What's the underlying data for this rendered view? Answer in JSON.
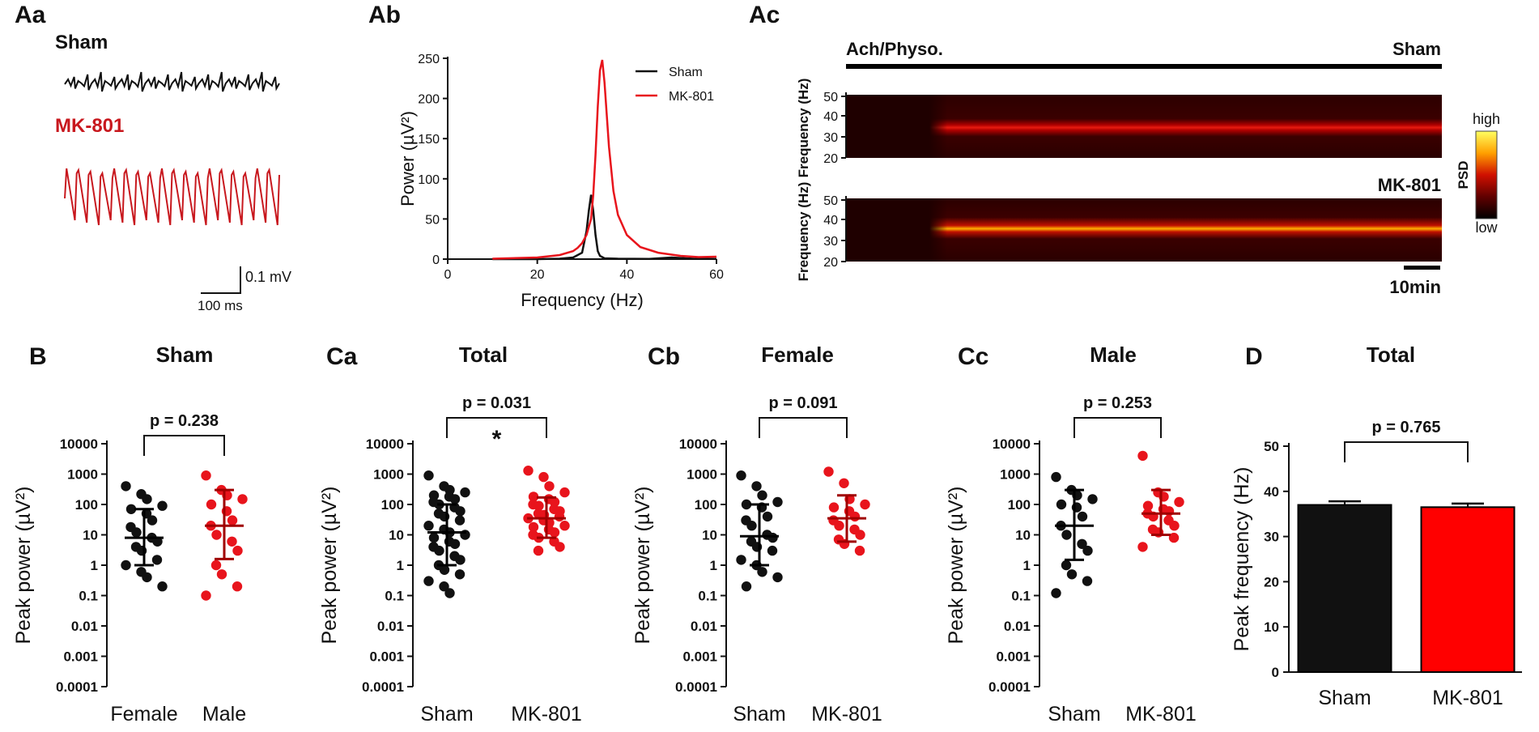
{
  "colors": {
    "sham": "#111111",
    "mk": "#e8141c",
    "mk_dark": "#c8181e"
  },
  "panel_labels": {
    "Aa": "Aa",
    "Ab": "Ab",
    "Ac": "Ac",
    "B": "B",
    "Ca": "Ca",
    "Cb": "Cb",
    "Cc": "Cc",
    "D": "D"
  },
  "panelAa": {
    "sham_label": "Sham",
    "mk_label": "MK-801",
    "scale_v": "0.1 mV",
    "scale_t": "100 ms"
  },
  "panelAc": {
    "top_bar_left": "Ach/Physo.",
    "top_bar_right": "Sham",
    "mk_label": "MK-801",
    "ylabel": "Frequency (Hz)",
    "yticks": [
      "50",
      "40",
      "30",
      "20"
    ],
    "time_scale": "10min",
    "colorbar_title": "PSD",
    "colorbar_high": "high",
    "colorbar_low": "low"
  },
  "log_ticks": [
    "10000",
    "1000",
    "100",
    "10",
    "1",
    "0.1",
    "0.01",
    "0.001",
    "0.0001"
  ],
  "chart_data": [
    {
      "id": "Ab",
      "type": "line",
      "title": "",
      "xlabel": "Frequency (Hz)",
      "ylabel": "Power (µV²)",
      "xlim": [
        0,
        60
      ],
      "ylim": [
        0,
        250
      ],
      "xticks": [
        "0",
        "20",
        "40",
        "60"
      ],
      "yticks": [
        "0",
        "50",
        "100",
        "150",
        "200",
        "250"
      ],
      "legend": [
        "Sham",
        "MK-801"
      ],
      "series": [
        {
          "name": "Sham",
          "x": [
            10,
            20,
            25,
            28,
            30,
            31,
            31.5,
            32,
            32.5,
            33,
            33.5,
            34,
            35,
            38,
            45,
            50,
            55,
            60
          ],
          "y": [
            0,
            0,
            0.5,
            2,
            8,
            35,
            60,
            80,
            60,
            30,
            10,
            4,
            1,
            0.5,
            0.3,
            2,
            0.5,
            0.2
          ]
        },
        {
          "name": "MK-801",
          "x": [
            10,
            20,
            25,
            28,
            29,
            30,
            31,
            32,
            32.5,
            33,
            33.5,
            34,
            34.5,
            35,
            36,
            37,
            38,
            40,
            43,
            47,
            52,
            56,
            60
          ],
          "y": [
            0.5,
            2,
            5,
            10,
            14,
            20,
            30,
            50,
            80,
            130,
            190,
            235,
            248,
            220,
            140,
            85,
            55,
            30,
            15,
            8,
            4,
            2.5,
            3
          ]
        }
      ]
    },
    {
      "id": "B",
      "type": "scatter",
      "title": "Sham",
      "scale": "log",
      "ylabel": "Peak power (µV²)",
      "categories": [
        "Female",
        "Male"
      ],
      "ylim": [
        0.0001,
        10000
      ],
      "p_label": "p = 0.238",
      "star": "",
      "groups": [
        {
          "name": "Female",
          "mean": 8,
          "sd_low": 1,
          "sd_high": 70,
          "values": [
            400,
            220,
            150,
            90,
            70,
            50,
            30,
            18,
            12,
            8,
            6,
            4,
            3,
            1.5,
            1,
            0.6,
            0.4,
            0.2
          ]
        },
        {
          "name": "Male",
          "mean": 20,
          "sd_low": 1.6,
          "sd_high": 300,
          "values": [
            900,
            300,
            200,
            150,
            100,
            60,
            30,
            20,
            10,
            6,
            3,
            1,
            0.5,
            0.2,
            0.1
          ]
        }
      ]
    },
    {
      "id": "Ca",
      "type": "scatter",
      "title": "Total",
      "scale": "log",
      "ylabel": "Peak power (µV²)",
      "categories": [
        "Sham",
        "MK-801"
      ],
      "ylim": [
        0.0001,
        10000
      ],
      "p_label": "p = 0.031",
      "star": "*",
      "groups": [
        {
          "name": "Sham",
          "mean": 12,
          "sd_low": 1,
          "sd_high": 100,
          "values": [
            900,
            400,
            300,
            250,
            200,
            180,
            150,
            120,
            100,
            80,
            60,
            50,
            40,
            30,
            20,
            15,
            12,
            10,
            8,
            6,
            5,
            4,
            3,
            2,
            1.5,
            1,
            0.7,
            0.5,
            0.3,
            0.2,
            0.12
          ]
        },
        {
          "name": "MK-801",
          "mean": 35,
          "sd_low": 8,
          "sd_high": 170,
          "values": [
            1300,
            800,
            400,
            250,
            180,
            150,
            120,
            100,
            90,
            70,
            60,
            50,
            45,
            40,
            35,
            30,
            25,
            20,
            18,
            15,
            12,
            10,
            8,
            6,
            4,
            3
          ]
        }
      ]
    },
    {
      "id": "Cb",
      "type": "scatter",
      "title": "Female",
      "scale": "log",
      "ylabel": "Peak power (µV²)",
      "categories": [
        "Sham",
        "MK-801"
      ],
      "ylim": [
        0.0001,
        10000
      ],
      "p_label": "p = 0.091",
      "star": "",
      "groups": [
        {
          "name": "Sham",
          "mean": 9,
          "sd_low": 1,
          "sd_high": 100,
          "values": [
            900,
            400,
            200,
            120,
            100,
            80,
            40,
            30,
            20,
            10,
            8,
            6,
            4,
            3,
            1.5,
            1,
            0.6,
            0.4,
            0.2
          ]
        },
        {
          "name": "MK-801",
          "mean": 35,
          "sd_low": 6,
          "sd_high": 200,
          "values": [
            1200,
            500,
            150,
            100,
            80,
            60,
            40,
            30,
            20,
            15,
            10,
            7,
            5,
            3
          ]
        }
      ]
    },
    {
      "id": "Cc",
      "type": "scatter",
      "title": "Male",
      "scale": "log",
      "ylabel": "Peak power (µV²)",
      "categories": [
        "Sham",
        "MK-801"
      ],
      "ylim": [
        0.0001,
        10000
      ],
      "p_label": "p = 0.253",
      "star": "",
      "groups": [
        {
          "name": "Sham",
          "mean": 20,
          "sd_low": 1.5,
          "sd_high": 300,
          "values": [
            800,
            300,
            200,
            150,
            100,
            80,
            40,
            20,
            10,
            5,
            3,
            1,
            0.5,
            0.3,
            0.12
          ]
        },
        {
          "name": "MK-801",
          "mean": 50,
          "sd_low": 10,
          "sd_high": 300,
          "values": [
            4000,
            250,
            180,
            120,
            90,
            70,
            60,
            50,
            40,
            30,
            20,
            15,
            12,
            8,
            4
          ]
        }
      ]
    },
    {
      "id": "D",
      "type": "bar",
      "title": "Total",
      "ylabel": "Peak frequency (Hz)",
      "categories": [
        "Sham",
        "MK-801"
      ],
      "ylim": [
        0,
        50
      ],
      "yticks": [
        "0",
        "10",
        "20",
        "30",
        "40",
        "50"
      ],
      "values": [
        37,
        36.5
      ],
      "errors": [
        0.8,
        0.8
      ],
      "p_label": "p = 0.765"
    }
  ]
}
